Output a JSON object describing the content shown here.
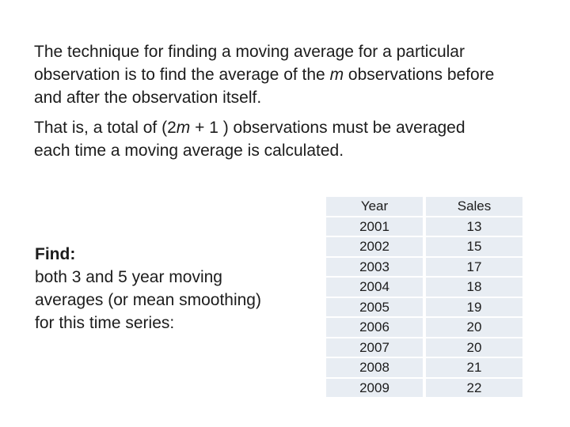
{
  "colors": {
    "background": "#ffffff",
    "text": "#1c1c1c",
    "table_row_bg": "#e8edf3",
    "table_gap": "#ffffff"
  },
  "intro_paragraph": {
    "lines": [
      [
        {
          "t": "The technique for finding a moving average for a particular"
        }
      ],
      [
        {
          "t": "observation is to find the average of the "
        },
        {
          "t": "m",
          "i": true
        },
        {
          "t": " observations before"
        }
      ],
      [
        {
          "t": "and after the observation itself."
        }
      ]
    ]
  },
  "total_paragraph": {
    "lines": [
      [
        {
          "t": "That is, a total of (2"
        },
        {
          "t": "m",
          "i": true
        },
        {
          "t": " + 1 ) observations must be averaged"
        }
      ],
      [
        {
          "t": "each time a moving average is calculated."
        }
      ]
    ]
  },
  "find_block": {
    "lines": [
      [
        {
          "t": "Find:",
          "b": true
        }
      ],
      [
        {
          "t": "both 3 and 5 year moving"
        }
      ],
      [
        {
          "t": "averages (or mean smoothing)"
        }
      ],
      [
        {
          "t": "for this time series:"
        }
      ]
    ]
  },
  "table": {
    "headers": [
      "Year",
      "Sales"
    ],
    "rows": [
      [
        "2001",
        "13"
      ],
      [
        "2002",
        "15"
      ],
      [
        "2003",
        "17"
      ],
      [
        "2004",
        "18"
      ],
      [
        "2005",
        "19"
      ],
      [
        "2006",
        "20"
      ],
      [
        "2007",
        "20"
      ],
      [
        "2008",
        "21"
      ],
      [
        "2009",
        "22"
      ]
    ]
  }
}
